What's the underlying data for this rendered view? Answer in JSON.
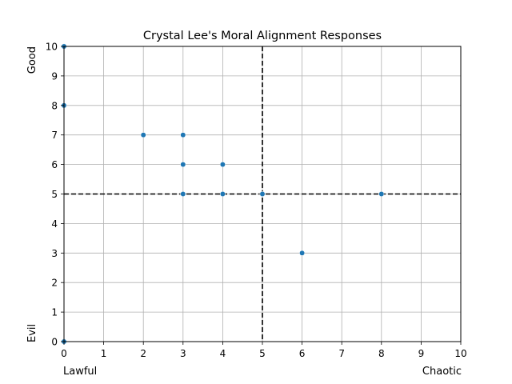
{
  "chart_data": {
    "type": "scatter",
    "title": "Crystal Lee's Moral Alignment Responses",
    "x_axis": {
      "range": [
        0,
        10
      ],
      "ticks": [
        "0",
        "1",
        "2",
        "3",
        "4",
        "5",
        "6",
        "7",
        "8",
        "9",
        "10"
      ],
      "low_label": "Lawful",
      "high_label": "Chaotic"
    },
    "y_axis": {
      "range": [
        0,
        10
      ],
      "ticks": [
        "0",
        "1",
        "2",
        "3",
        "4",
        "5",
        "6",
        "7",
        "8",
        "9",
        "10"
      ],
      "low_label": "Evil",
      "high_label": "Good"
    },
    "grid": true,
    "reference_lines": [
      {
        "orientation": "vertical",
        "value": 5,
        "style": "dashed",
        "color": "#000000"
      },
      {
        "orientation": "horizontal",
        "value": 5,
        "style": "dashed",
        "color": "#000000"
      }
    ],
    "points": [
      {
        "x": 0,
        "y": 10
      },
      {
        "x": 0,
        "y": 8
      },
      {
        "x": 0,
        "y": 0
      },
      {
        "x": 2,
        "y": 7
      },
      {
        "x": 3,
        "y": 7
      },
      {
        "x": 3,
        "y": 6
      },
      {
        "x": 3,
        "y": 5
      },
      {
        "x": 4,
        "y": 6
      },
      {
        "x": 4,
        "y": 5
      },
      {
        "x": 5,
        "y": 5
      },
      {
        "x": 6,
        "y": 3
      },
      {
        "x": 8,
        "y": 5
      }
    ],
    "marker_color": "#1f77b4",
    "grid_color": "#b0b0b0"
  }
}
